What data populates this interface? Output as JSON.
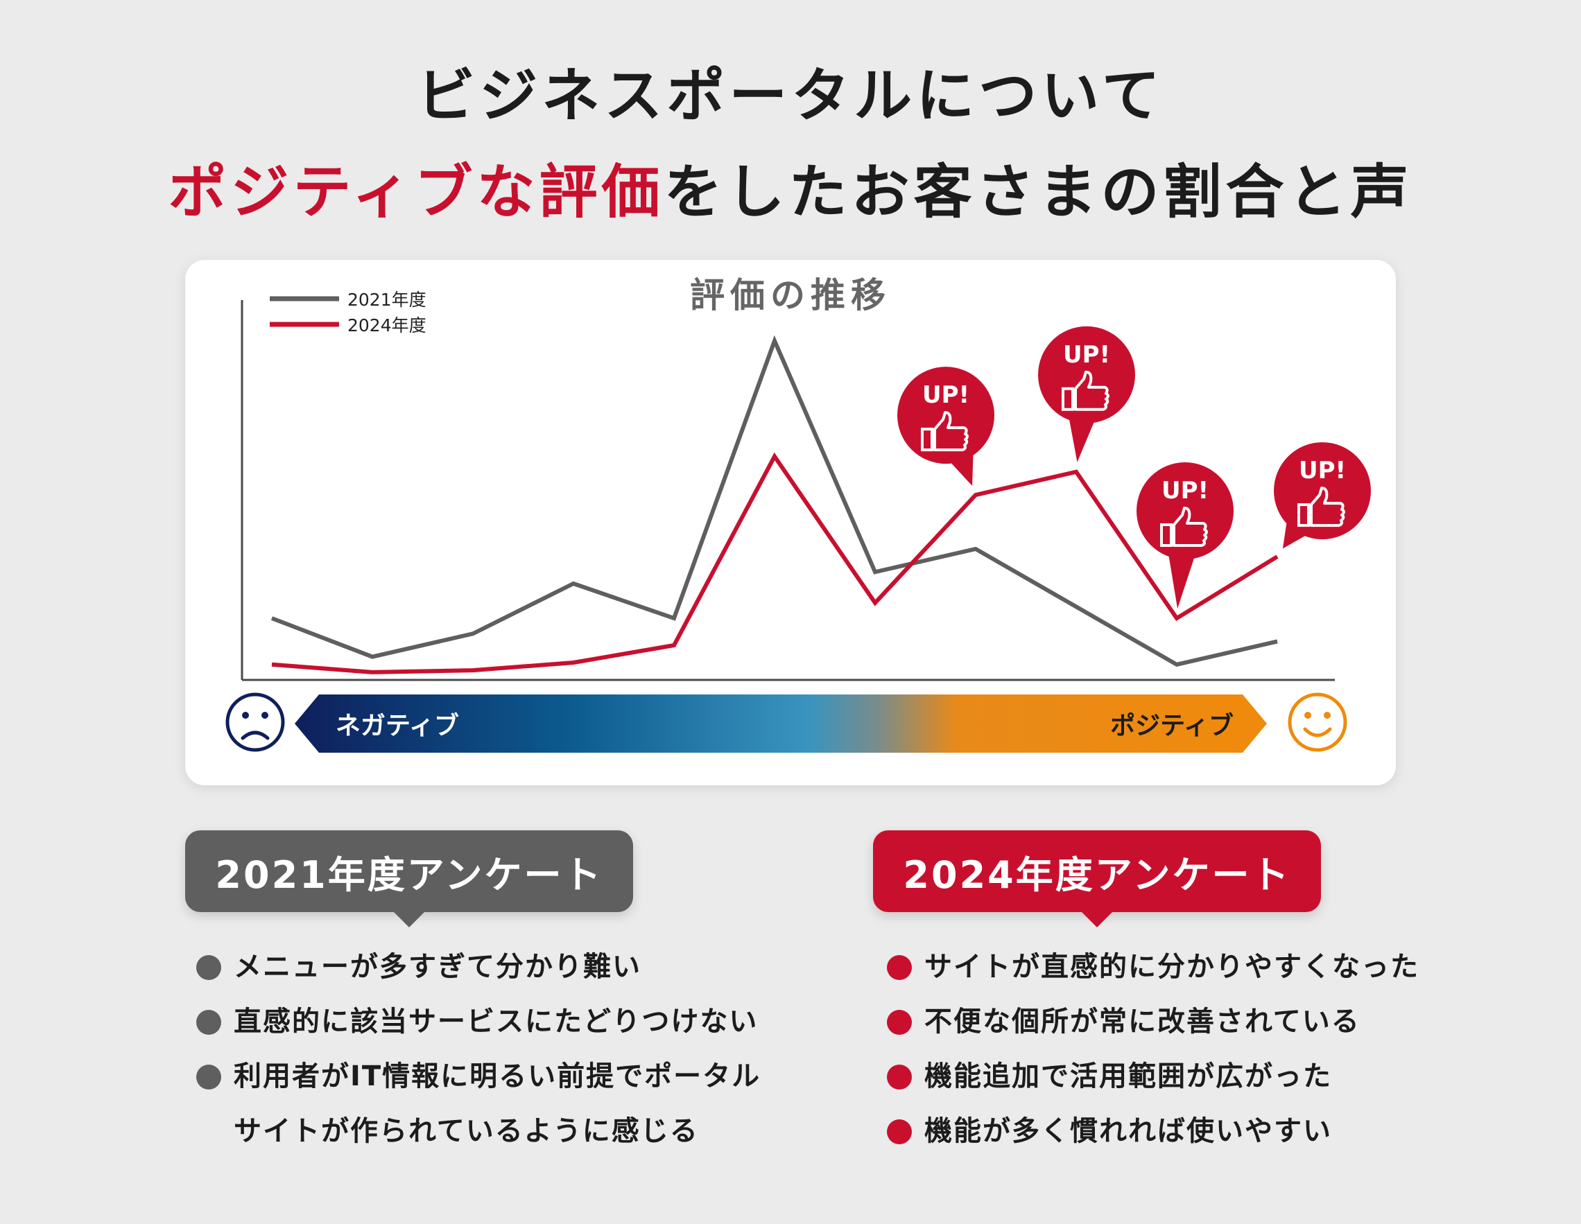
{
  "title": {
    "line1": "ビジネスポータルについて",
    "line2_red": "ポジティブな評価",
    "line2_rest": "をしたお客さまの割合と声"
  },
  "chart_data": {
    "type": "line",
    "title": "評価の推移",
    "x": [
      1,
      2,
      3,
      4,
      5,
      6,
      7,
      8,
      9,
      10,
      11
    ],
    "series": [
      {
        "name": "2021年度",
        "color": "#5f5f5f",
        "values": [
          16,
          6,
          12,
          25,
          16,
          88,
          28,
          34,
          19,
          4,
          10
        ]
      },
      {
        "name": "2024年度",
        "color": "#c8102e",
        "values": [
          4,
          2,
          2.5,
          4.5,
          9,
          58,
          20,
          48,
          54,
          16,
          32
        ]
      }
    ],
    "ylim": [
      0,
      100
    ],
    "legend_position": "top-left",
    "axis": {
      "negative_label": "ネガティブ",
      "positive_label": "ポジティブ",
      "negative_icon": "sad-face-icon",
      "positive_icon": "smile-face-icon"
    },
    "annotations": [
      {
        "text": "UP!",
        "icon": "thumbs-up-icon",
        "series": "2024年度",
        "point": 8
      },
      {
        "text": "UP!",
        "icon": "thumbs-up-icon",
        "series": "2024年度",
        "point": 9
      },
      {
        "text": "UP!",
        "icon": "thumbs-up-icon",
        "series": "2024年度",
        "point": 10
      },
      {
        "text": "UP!",
        "icon": "thumbs-up-icon",
        "series": "2024年度",
        "point": 11
      }
    ],
    "grid": false
  },
  "survey_2021": {
    "label": "2021年度アンケート",
    "color": "#5f5f5f",
    "items": [
      "メニューが多すぎて分かり難い",
      "直感的に該当サービスにたどりつけない",
      "利用者がIT情報に明るい前提でポータル",
      "サイトが作られているように感じる"
    ]
  },
  "survey_2024": {
    "label": "2024年度アンケート",
    "color": "#c8102e",
    "items": [
      "サイトが直感的に分かりやすくなった",
      "不便な個所が常に改善されている",
      "機能追加で活用範囲が広がった",
      "機能が多く慣れれば使いやすい"
    ]
  }
}
